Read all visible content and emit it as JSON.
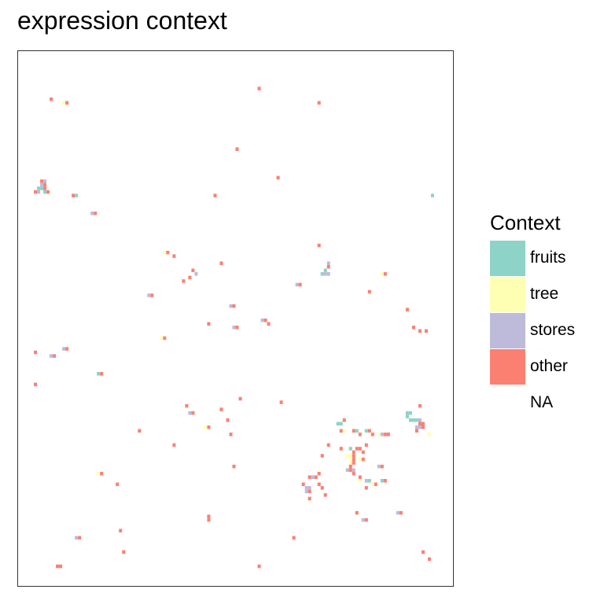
{
  "chart_data": {
    "type": "heatmap",
    "title": "expression context",
    "xlabel": "",
    "ylabel": "",
    "grid": false,
    "legend": {
      "title": "Context",
      "placement": "right",
      "items": [
        {
          "label": "fruits",
          "color": "#8DD3C7"
        },
        {
          "label": "tree",
          "color": "#FFFFB3"
        },
        {
          "label": "stores",
          "color": "#BEBADA"
        },
        {
          "label": "other",
          "color": "#FB8072"
        },
        {
          "label": "NA",
          "color": "#FFFFFF"
        }
      ]
    },
    "grid_size": [
      138,
      150
    ],
    "cells": [
      [
        10,
        13,
        "other"
      ],
      [
        14,
        14,
        "tree"
      ],
      [
        15,
        14,
        "other"
      ],
      [
        76,
        10,
        "other"
      ],
      [
        95,
        14,
        "other"
      ],
      [
        69,
        27,
        "other"
      ],
      [
        82,
        35,
        "other"
      ],
      [
        7,
        36,
        "other"
      ],
      [
        7,
        37,
        "stores"
      ],
      [
        8,
        36,
        "stores"
      ],
      [
        8,
        37,
        "other"
      ],
      [
        6,
        38,
        "fruits"
      ],
      [
        7,
        38,
        "fruits"
      ],
      [
        6,
        39,
        "stores"
      ],
      [
        8,
        38,
        "other"
      ],
      [
        8,
        39,
        "fruits"
      ],
      [
        9,
        39,
        "other"
      ],
      [
        5,
        39,
        "other"
      ],
      [
        17,
        40,
        "other"
      ],
      [
        18,
        40,
        "fruits"
      ],
      [
        23,
        45,
        "stores"
      ],
      [
        24,
        45,
        "other"
      ],
      [
        62,
        40,
        "other"
      ],
      [
        131,
        40,
        "fruits"
      ],
      [
        46,
        56,
        "tree"
      ],
      [
        47,
        56,
        "other"
      ],
      [
        49,
        57,
        "other"
      ],
      [
        64,
        59,
        "other"
      ],
      [
        95,
        54,
        "other"
      ],
      [
        98,
        59,
        "stores"
      ],
      [
        98,
        60,
        "other"
      ],
      [
        97,
        61,
        "fruits"
      ],
      [
        96,
        62,
        "fruits"
      ],
      [
        97,
        62,
        "stores"
      ],
      [
        98,
        62,
        "stores"
      ],
      [
        115,
        62,
        "tree"
      ],
      [
        116,
        62,
        "other"
      ],
      [
        55,
        61,
        "other"
      ],
      [
        56,
        62,
        "stores"
      ],
      [
        54,
        63,
        "other"
      ],
      [
        52,
        64,
        "other"
      ],
      [
        88,
        65,
        "stores"
      ],
      [
        89,
        65,
        "other"
      ],
      [
        41,
        68,
        "stores"
      ],
      [
        42,
        68,
        "other"
      ],
      [
        111,
        67,
        "other"
      ],
      [
        67,
        71,
        "stores"
      ],
      [
        68,
        71,
        "other"
      ],
      [
        123,
        72,
        "other"
      ],
      [
        77,
        75,
        "stores"
      ],
      [
        78,
        75,
        "other"
      ],
      [
        79,
        76,
        "other"
      ],
      [
        60,
        76,
        "other"
      ],
      [
        68,
        77,
        "stores"
      ],
      [
        69,
        77,
        "other"
      ],
      [
        125,
        77,
        "other"
      ],
      [
        127,
        78,
        "other"
      ],
      [
        129,
        78,
        "other"
      ],
      [
        45,
        80,
        "tree"
      ],
      [
        46,
        80,
        "other"
      ],
      [
        14,
        83,
        "stores"
      ],
      [
        15,
        83,
        "other"
      ],
      [
        5,
        84,
        "other"
      ],
      [
        10,
        85,
        "stores"
      ],
      [
        11,
        85,
        "other"
      ],
      [
        25,
        90,
        "fruits"
      ],
      [
        26,
        90,
        "other"
      ],
      [
        5,
        93,
        "other"
      ],
      [
        70,
        97,
        "other"
      ],
      [
        83,
        98,
        "other"
      ],
      [
        53,
        99,
        "other"
      ],
      [
        54,
        101,
        "stores"
      ],
      [
        55,
        101,
        "other"
      ],
      [
        64,
        100,
        "other"
      ],
      [
        66,
        103,
        "other"
      ],
      [
        101,
        104,
        "fruits"
      ],
      [
        102,
        104,
        "fruits"
      ],
      [
        103,
        103,
        "other"
      ],
      [
        102,
        106,
        "other"
      ],
      [
        103,
        106,
        "tree"
      ],
      [
        106,
        106,
        "other"
      ],
      [
        107,
        106,
        "fruits"
      ],
      [
        110,
        106,
        "fruits"
      ],
      [
        111,
        106,
        "other"
      ],
      [
        108,
        107,
        "other"
      ],
      [
        112,
        107,
        "other"
      ],
      [
        115,
        107,
        "stores"
      ],
      [
        116,
        107,
        "other"
      ],
      [
        114,
        107,
        "tree"
      ],
      [
        117,
        107,
        "other"
      ],
      [
        123,
        101,
        "fruits"
      ],
      [
        124,
        101,
        "fruits"
      ],
      [
        127,
        99,
        "other"
      ],
      [
        123,
        102,
        "fruits"
      ],
      [
        124,
        103,
        "fruits"
      ],
      [
        125,
        103,
        "fruits"
      ],
      [
        126,
        103,
        "fruits"
      ],
      [
        127,
        103,
        "stores"
      ],
      [
        127,
        104,
        "other"
      ],
      [
        128,
        104,
        "other"
      ],
      [
        126,
        105,
        "stores"
      ],
      [
        127,
        105,
        "stores"
      ],
      [
        128,
        105,
        "other"
      ],
      [
        126,
        106,
        "other"
      ],
      [
        130,
        107,
        "tree"
      ],
      [
        60,
        105,
        "other"
      ],
      [
        59,
        105,
        "tree"
      ],
      [
        38,
        106,
        "other"
      ],
      [
        67,
        107,
        "other"
      ],
      [
        49,
        110,
        "other"
      ],
      [
        98,
        110,
        "other"
      ],
      [
        102,
        111,
        "other"
      ],
      [
        105,
        111,
        "fruits"
      ],
      [
        106,
        112,
        "other"
      ],
      [
        104,
        113,
        "tree"
      ],
      [
        105,
        113,
        "tree"
      ],
      [
        106,
        113,
        "other"
      ],
      [
        107,
        111,
        "other"
      ],
      [
        108,
        111,
        "other"
      ],
      [
        109,
        112,
        "other"
      ],
      [
        105,
        114,
        "tree"
      ],
      [
        106,
        114,
        "other"
      ],
      [
        108,
        114,
        "tree"
      ],
      [
        109,
        114,
        "other"
      ],
      [
        105,
        115,
        "tree"
      ],
      [
        106,
        115,
        "other"
      ],
      [
        110,
        110,
        "other"
      ],
      [
        96,
        113,
        "other"
      ],
      [
        105,
        116,
        "other"
      ],
      [
        104,
        117,
        "stores"
      ],
      [
        105,
        117,
        "other"
      ],
      [
        106,
        117,
        "stores"
      ],
      [
        114,
        116,
        "stores"
      ],
      [
        115,
        116,
        "other"
      ],
      [
        68,
        116,
        "other"
      ],
      [
        25,
        118,
        "tree"
      ],
      [
        26,
        118,
        "other"
      ],
      [
        106,
        118,
        "other"
      ],
      [
        92,
        119,
        "other"
      ],
      [
        93,
        119,
        "stores"
      ],
      [
        94,
        119,
        "other"
      ],
      [
        95,
        118,
        "other"
      ],
      [
        110,
        120,
        "stores"
      ],
      [
        111,
        120,
        "fruits"
      ],
      [
        112,
        121,
        "tree"
      ],
      [
        113,
        121,
        "other"
      ],
      [
        115,
        120,
        "fruits"
      ],
      [
        116,
        120,
        "other"
      ],
      [
        108,
        119,
        "other"
      ],
      [
        108,
        120,
        "tree"
      ],
      [
        31,
        121,
        "other"
      ],
      [
        90,
        121,
        "other"
      ],
      [
        95,
        121,
        "other"
      ],
      [
        91,
        122,
        "stores"
      ],
      [
        92,
        122,
        "stores"
      ],
      [
        96,
        122,
        "other"
      ],
      [
        110,
        122,
        "other"
      ],
      [
        91,
        123,
        "stores"
      ],
      [
        92,
        123,
        "other"
      ],
      [
        97,
        124,
        "other"
      ],
      [
        92,
        125,
        "other"
      ],
      [
        107,
        129,
        "other"
      ],
      [
        120,
        129,
        "stores"
      ],
      [
        121,
        129,
        "other"
      ],
      [
        60,
        130,
        "other"
      ],
      [
        60,
        131,
        "other"
      ],
      [
        109,
        131,
        "stores"
      ],
      [
        110,
        131,
        "other"
      ],
      [
        32,
        134,
        "other"
      ],
      [
        18,
        136,
        "stores"
      ],
      [
        19,
        136,
        "other"
      ],
      [
        87,
        136,
        "other"
      ],
      [
        33,
        140,
        "other"
      ],
      [
        128,
        140,
        "other"
      ],
      [
        130,
        142,
        "other"
      ],
      [
        12,
        144,
        "other"
      ],
      [
        13,
        144,
        "other"
      ],
      [
        76,
        144,
        "other"
      ]
    ]
  }
}
